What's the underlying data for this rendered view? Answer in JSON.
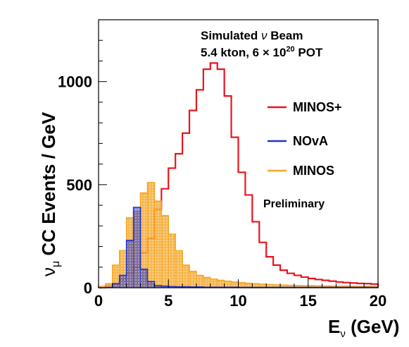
{
  "chart_data": {
    "type": "histogram",
    "xlabel": "E",
    "xlabel_sub": "ν",
    "xlabel_unit": " (GeV)",
    "ylabel": "ν",
    "ylabel_sub": "μ",
    "ylabel_rest": " CC Events / GeV",
    "xlim": [
      0,
      20
    ],
    "ylim": [
      0,
      1300
    ],
    "xticks": [
      0,
      5,
      10,
      15,
      20
    ],
    "yticks": [
      0,
      500,
      1000
    ],
    "annotation": {
      "line1_pre": "Simulated ",
      "line1_nu": "ν",
      "line1_post": " Beam",
      "line2_pre": "5.4 kton, 6 × 10",
      "line2_sup": "20",
      "line2_post": " POT"
    },
    "preliminary": "Preliminary",
    "bin_width": 0.5,
    "series": [
      {
        "name": "MINOS+",
        "color": "#e8141c",
        "fill": "none",
        "values": [
          5,
          10,
          20,
          40,
          70,
          100,
          170,
          240,
          380,
          480,
          580,
          650,
          750,
          860,
          960,
          1060,
          1090,
          1060,
          930,
          730,
          560,
          450,
          320,
          220,
          150,
          110,
          85,
          70,
          60,
          52,
          45,
          40,
          36,
          32,
          28,
          25,
          23,
          21,
          20,
          18
        ]
      },
      {
        "name": "MINOS",
        "color": "#f5a623",
        "fill": "#f5a623",
        "values": [
          5,
          20,
          110,
          180,
          340,
          370,
          460,
          510,
          420,
          350,
          260,
          180,
          110,
          80,
          60,
          50,
          42,
          36,
          32,
          28,
          25,
          22,
          20,
          18,
          16,
          14,
          13,
          12,
          11,
          10,
          10,
          9,
          9,
          8,
          8,
          8,
          7,
          7,
          7,
          6
        ]
      },
      {
        "name": "NOvA",
        "color": "#2233cc",
        "fill": "#2233cc",
        "values": [
          0,
          2,
          20,
          60,
          230,
          390,
          90,
          30,
          10,
          8,
          6,
          5,
          5,
          4,
          4,
          3,
          3,
          3,
          3,
          3,
          2,
          2,
          2,
          2,
          2,
          2,
          2,
          2,
          2,
          2,
          2,
          2,
          2,
          2,
          2,
          2,
          2,
          2,
          2,
          2
        ]
      }
    ],
    "legend": [
      {
        "name": "MINOS+",
        "color": "#e8141c"
      },
      {
        "name": "NOvA",
        "color": "#2233cc"
      },
      {
        "name": "MINOS",
        "color": "#f5a623"
      }
    ]
  }
}
